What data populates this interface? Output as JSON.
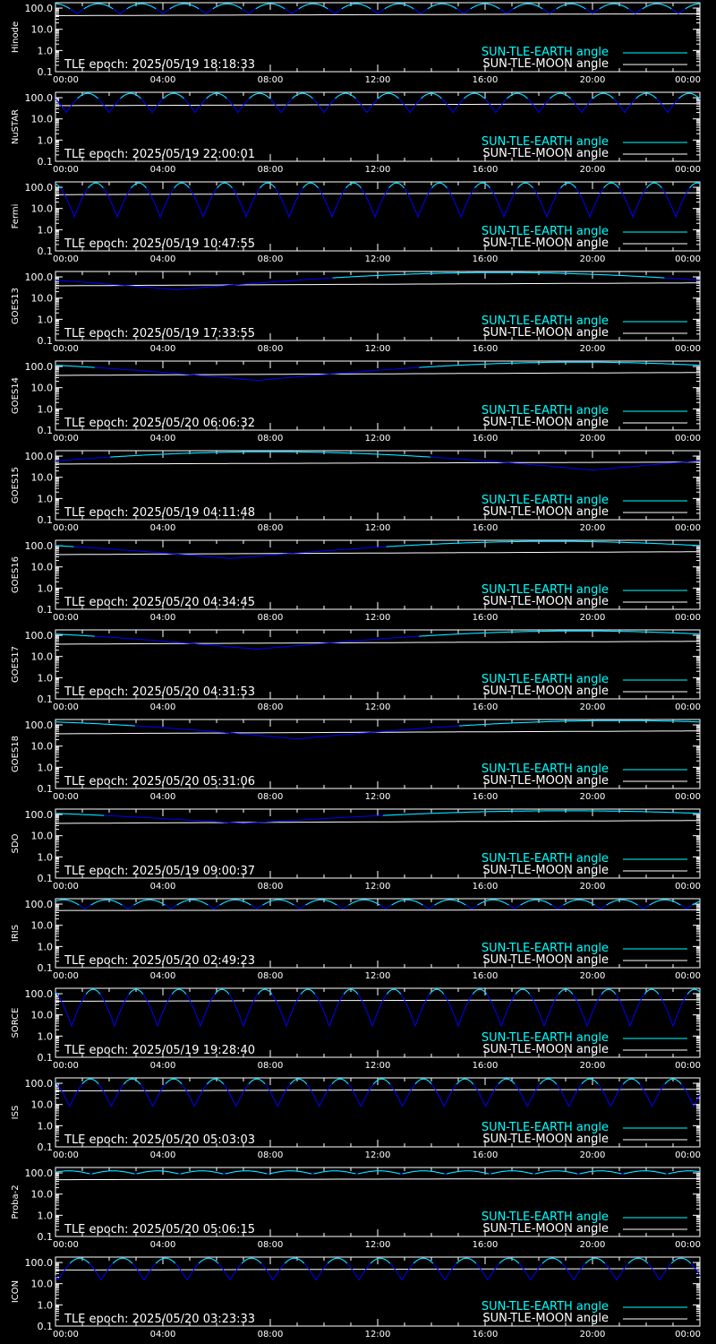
{
  "colors": {
    "background": "#000000",
    "axes": "#ffffff",
    "earth": "#00ffff",
    "earth_shadow": "#0000ff",
    "moon": "#ffffff"
  },
  "legend": {
    "earth": "SUN-TLE-EARTH angle",
    "moon": "SUN-TLE-MOON angle",
    "position": "bottom-right"
  },
  "epoch_prefix": "TLE epoch: ",
  "chart_data": [
    {
      "type": "line",
      "ylabel": "Hinode",
      "epoch": "2025/05/19 18:18:33",
      "yscale": "log",
      "ylim": [
        0.1,
        180
      ],
      "xlim": [
        0,
        24
      ],
      "x_ticks": [
        "00:00",
        "04:00",
        "08:00",
        "12:00",
        "16:00",
        "20:00",
        "00:00"
      ],
      "y_ticks": [
        "100.0",
        "10.0",
        "1.0",
        "0.1"
      ],
      "earth": {
        "model": "orbit",
        "period_h": 1.6,
        "phase": 0.0,
        "max": 160,
        "min": 55
      },
      "moon": {
        "model": "line",
        "start": 44,
        "end": 54
      }
    },
    {
      "type": "line",
      "ylabel": "NuSTAR",
      "epoch": "2025/05/19 22:00:01",
      "yscale": "log",
      "ylim": [
        0.1,
        180
      ],
      "xlim": [
        0,
        24
      ],
      "x_ticks": [
        "00:00",
        "04:00",
        "08:00",
        "12:00",
        "16:00",
        "20:00",
        "00:00"
      ],
      "y_ticks": [
        "100.0",
        "10.0",
        "1.0",
        "0.1"
      ],
      "earth": {
        "model": "orbit",
        "period_h": 1.6,
        "phase": 1.2,
        "max": 160,
        "min": 20
      },
      "moon": {
        "model": "line",
        "start": 42,
        "end": 52
      }
    },
    {
      "type": "line",
      "ylabel": "Fermi",
      "epoch": "2025/05/19 10:47:55",
      "yscale": "log",
      "ylim": [
        0.1,
        180
      ],
      "xlim": [
        0,
        24
      ],
      "x_ticks": [
        "00:00",
        "04:00",
        "08:00",
        "12:00",
        "16:00",
        "20:00",
        "00:00"
      ],
      "y_ticks": [
        "100.0",
        "10.0",
        "1.0",
        "0.1"
      ],
      "earth": {
        "model": "orbit",
        "period_h": 1.6,
        "phase": 1.5,
        "max": 160,
        "min": 4
      },
      "moon": {
        "model": "line",
        "start": 45,
        "end": 55
      }
    },
    {
      "type": "line",
      "ylabel": "GOES13",
      "epoch": "2025/05/19 17:33:55",
      "yscale": "log",
      "ylim": [
        0.1,
        180
      ],
      "xlim": [
        0,
        24
      ],
      "x_ticks": [
        "00:00",
        "04:00",
        "08:00",
        "12:00",
        "16:00",
        "20:00",
        "00:00"
      ],
      "y_ticks": [
        "100.0",
        "10.0",
        "1.0",
        "0.1"
      ],
      "earth": {
        "model": "geo",
        "min_t": 4.5,
        "min_v": 25,
        "max_v": 160
      },
      "moon": {
        "model": "line",
        "start": 38,
        "end": 52
      }
    },
    {
      "type": "line",
      "ylabel": "GOES14",
      "epoch": "2025/05/20 06:06:32",
      "yscale": "log",
      "ylim": [
        0.1,
        180
      ],
      "xlim": [
        0,
        24
      ],
      "x_ticks": [
        "00:00",
        "04:00",
        "08:00",
        "12:00",
        "16:00",
        "20:00",
        "00:00"
      ],
      "y_ticks": [
        "100.0",
        "10.0",
        "1.0",
        "0.1"
      ],
      "earth": {
        "model": "geo",
        "min_t": 7.5,
        "min_v": 22,
        "max_v": 160
      },
      "moon": {
        "model": "line",
        "start": 38,
        "end": 52
      }
    },
    {
      "type": "line",
      "ylabel": "GOES15",
      "epoch": "2025/05/19 04:11:48",
      "yscale": "log",
      "ylim": [
        0.1,
        180
      ],
      "xlim": [
        0,
        24
      ],
      "x_ticks": [
        "00:00",
        "04:00",
        "08:00",
        "12:00",
        "16:00",
        "20:00",
        "00:00"
      ],
      "y_ticks": [
        "100.0",
        "10.0",
        "1.0",
        "0.1"
      ],
      "earth": {
        "model": "geo",
        "min_t": 20,
        "min_v": 22,
        "max_v": 160
      },
      "moon": {
        "model": "line",
        "start": 42,
        "end": 52
      }
    },
    {
      "type": "line",
      "ylabel": "GOES16",
      "epoch": "2025/05/20 04:34:45",
      "yscale": "log",
      "ylim": [
        0.1,
        180
      ],
      "xlim": [
        0,
        24
      ],
      "x_ticks": [
        "00:00",
        "04:00",
        "08:00",
        "12:00",
        "16:00",
        "20:00",
        "00:00"
      ],
      "y_ticks": [
        "100.0",
        "10.0",
        "1.0",
        "0.1"
      ],
      "earth": {
        "model": "geo",
        "min_t": 6.5,
        "min_v": 25,
        "max_v": 160
      },
      "moon": {
        "model": "line",
        "start": 38,
        "end": 52
      }
    },
    {
      "type": "line",
      "ylabel": "GOES17",
      "epoch": "2025/05/20 04:31:53",
      "yscale": "log",
      "ylim": [
        0.1,
        180
      ],
      "xlim": [
        0,
        24
      ],
      "x_ticks": [
        "00:00",
        "04:00",
        "08:00",
        "12:00",
        "16:00",
        "20:00",
        "00:00"
      ],
      "y_ticks": [
        "100.0",
        "10.0",
        "1.0",
        "0.1"
      ],
      "earth": {
        "model": "geo",
        "min_t": 7.5,
        "min_v": 22,
        "max_v": 160
      },
      "moon": {
        "model": "line",
        "start": 38,
        "end": 52
      }
    },
    {
      "type": "line",
      "ylabel": "GOES18",
      "epoch": "2025/05/20 05:31:06",
      "yscale": "log",
      "ylim": [
        0.1,
        180
      ],
      "xlim": [
        0,
        24
      ],
      "x_ticks": [
        "00:00",
        "04:00",
        "08:00",
        "12:00",
        "16:00",
        "20:00",
        "00:00"
      ],
      "y_ticks": [
        "100.0",
        "10.0",
        "1.0",
        "0.1"
      ],
      "earth": {
        "model": "geo",
        "min_t": 9,
        "min_v": 22,
        "max_v": 160
      },
      "moon": {
        "model": "line",
        "start": 38,
        "end": 52
      }
    },
    {
      "type": "line",
      "ylabel": "SDO",
      "epoch": "2025/05/19 09:00:37",
      "yscale": "log",
      "ylim": [
        0.1,
        180
      ],
      "xlim": [
        0,
        24
      ],
      "x_ticks": [
        "00:00",
        "04:00",
        "08:00",
        "12:00",
        "16:00",
        "20:00",
        "00:00"
      ],
      "y_ticks": [
        "100.0",
        "10.0",
        "1.0",
        "0.1"
      ],
      "earth": {
        "model": "geo",
        "min_t": 7,
        "min_v": 38,
        "max_v": 150
      },
      "moon": {
        "model": "line",
        "start": 38,
        "end": 52
      }
    },
    {
      "type": "line",
      "ylabel": "IRIS",
      "epoch": "2025/05/20 02:49:23",
      "yscale": "log",
      "ylim": [
        0.1,
        180
      ],
      "xlim": [
        0,
        24
      ],
      "x_ticks": [
        "00:00",
        "04:00",
        "08:00",
        "12:00",
        "16:00",
        "20:00",
        "00:00"
      ],
      "y_ticks": [
        "100.0",
        "10.0",
        "1.0",
        "0.1"
      ],
      "earth": {
        "model": "orbit",
        "period_h": 1.6,
        "phase": 0.3,
        "max": 160,
        "min": 60
      },
      "moon": {
        "model": "line",
        "start": 50,
        "end": 54
      }
    },
    {
      "type": "line",
      "ylabel": "SORCE",
      "epoch": "2025/05/19 19:28:40",
      "yscale": "log",
      "ylim": [
        0.1,
        180
      ],
      "xlim": [
        0,
        24
      ],
      "x_ticks": [
        "00:00",
        "04:00",
        "08:00",
        "12:00",
        "16:00",
        "20:00",
        "00:00"
      ],
      "y_ticks": [
        "100.0",
        "10.0",
        "1.0",
        "0.1"
      ],
      "earth": {
        "model": "orbit",
        "period_h": 1.6,
        "phase": 1.4,
        "max": 160,
        "min": 3
      },
      "moon": {
        "model": "line",
        "start": 44,
        "end": 52
      }
    },
    {
      "type": "line",
      "ylabel": "ISS",
      "epoch": "2025/05/20 05:03:03",
      "yscale": "log",
      "ylim": [
        0.1,
        180
      ],
      "xlim": [
        0,
        24
      ],
      "x_ticks": [
        "00:00",
        "04:00",
        "08:00",
        "12:00",
        "16:00",
        "20:00",
        "00:00"
      ],
      "y_ticks": [
        "100.0",
        "10.0",
        "1.0",
        "0.1"
      ],
      "earth": {
        "model": "orbit",
        "period_h": 1.55,
        "phase": 1.3,
        "max": 160,
        "min": 8
      },
      "moon": {
        "model": "line",
        "start": 44,
        "end": 52
      }
    },
    {
      "type": "line",
      "ylabel": "Proba-2",
      "epoch": "2025/05/20 05:06:15",
      "yscale": "log",
      "ylim": [
        0.1,
        180
      ],
      "xlim": [
        0,
        24
      ],
      "x_ticks": [
        "00:00",
        "04:00",
        "08:00",
        "12:00",
        "16:00",
        "20:00",
        "00:00"
      ],
      "y_ticks": [
        "100.0",
        "10.0",
        "1.0",
        "0.1"
      ],
      "earth": {
        "model": "orbit",
        "period_h": 1.65,
        "phase": 0.5,
        "max": 125,
        "min": 88
      },
      "moon": {
        "model": "line",
        "start": 48,
        "end": 54
      }
    },
    {
      "type": "line",
      "ylabel": "ICON",
      "epoch": "2025/05/20 03:23:33",
      "yscale": "log",
      "ylim": [
        0.1,
        180
      ],
      "xlim": [
        0,
        24
      ],
      "x_ticks": [
        "00:00",
        "04:00",
        "08:00",
        "12:00",
        "16:00",
        "20:00",
        "00:00"
      ],
      "y_ticks": [
        "100.0",
        "10.0",
        "1.0",
        "0.1"
      ],
      "earth": {
        "model": "orbit",
        "period_h": 1.6,
        "phase": 0.9,
        "max": 160,
        "min": 15
      },
      "moon": {
        "model": "line",
        "start": 44,
        "end": 52
      }
    }
  ]
}
